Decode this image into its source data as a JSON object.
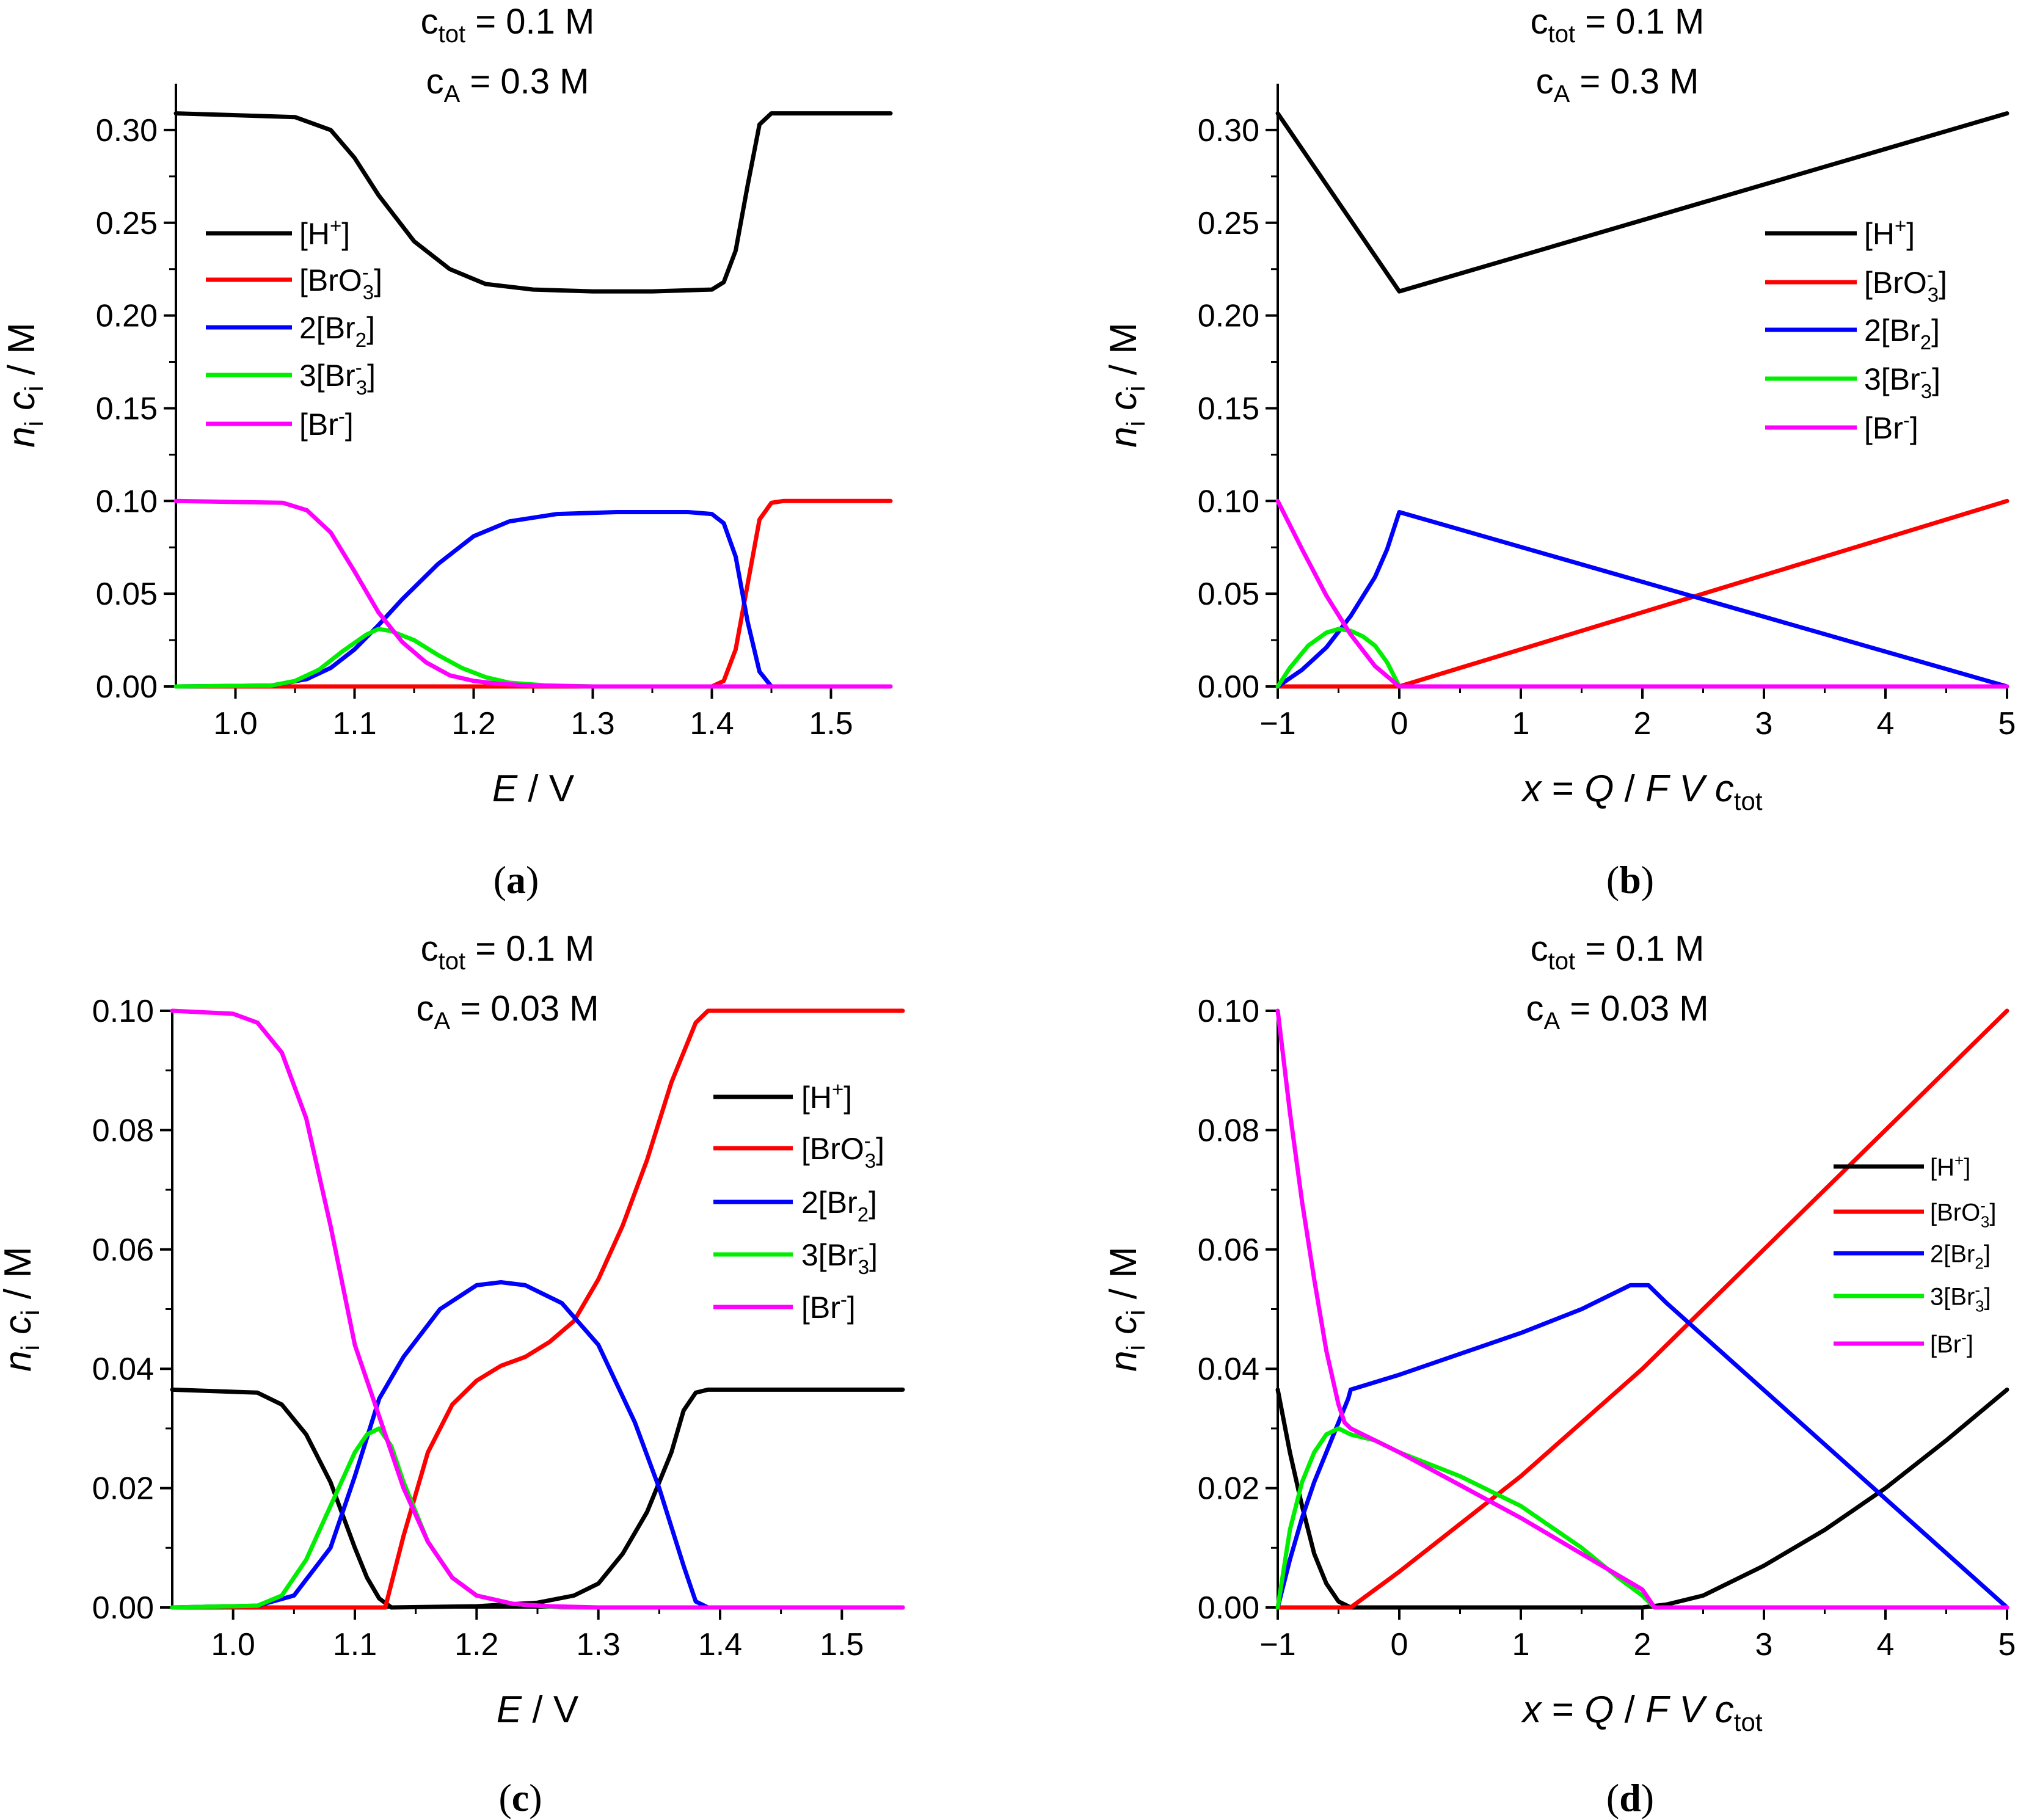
{
  "colors": {
    "h": "#000000",
    "bro3": "#ff0000",
    "br2": "#0000ff",
    "br3": "#00ee00",
    "br": "#ff00ff"
  },
  "chart_data": [
    {
      "id": "a",
      "type": "line",
      "caption": "a",
      "title_lines": [
        {
          "main": "c",
          "sub": "tot",
          "rest": " = 0.1 M"
        },
        {
          "main": "c",
          "sub": "A",
          "rest": " = 0.3 M"
        }
      ],
      "xlabel": {
        "kind": "E"
      },
      "ylabel": {
        "kind": "nici"
      },
      "xlim": [
        0.95,
        1.55
      ],
      "ylim": [
        0,
        0.325
      ],
      "xticks": [
        1.0,
        1.1,
        1.2,
        1.3,
        1.4,
        1.5
      ],
      "xtick_labels": [
        "1.0",
        "1.1",
        "1.2",
        "1.3",
        "1.4",
        "1.5"
      ],
      "yticks": [
        0,
        0.05,
        0.1,
        0.15,
        0.2,
        0.25,
        0.3
      ],
      "ytick_labels": [
        "0.00",
        "0.05",
        "0.10",
        "0.15",
        "0.20",
        "0.25",
        "0.30"
      ],
      "legend_placement": "left",
      "legend_labels": [
        "[H+]",
        "[BrO3-]",
        "2[Br2]",
        "3[Br3-]",
        "[Br-]"
      ],
      "series": [
        {
          "key": "h",
          "name": "[H+]",
          "x": [
            0.95,
            1.05,
            1.08,
            1.1,
            1.12,
            1.15,
            1.18,
            1.21,
            1.25,
            1.3,
            1.35,
            1.4,
            1.41,
            1.42,
            1.43,
            1.44,
            1.45,
            1.55
          ],
          "y": [
            0.309,
            0.307,
            0.3,
            0.285,
            0.265,
            0.24,
            0.225,
            0.217,
            0.214,
            0.213,
            0.213,
            0.214,
            0.218,
            0.235,
            0.27,
            0.303,
            0.309,
            0.309
          ]
        },
        {
          "key": "bro3",
          "name": "[BrO3-]",
          "x": [
            0.95,
            1.4,
            1.41,
            1.42,
            1.43,
            1.44,
            1.45,
            1.46,
            1.55
          ],
          "y": [
            0,
            0,
            0.003,
            0.02,
            0.055,
            0.09,
            0.099,
            0.1,
            0.1
          ]
        },
        {
          "key": "br2",
          "name": "2[Br2]",
          "x": [
            0.95,
            1.03,
            1.06,
            1.08,
            1.1,
            1.12,
            1.14,
            1.17,
            1.2,
            1.23,
            1.27,
            1.32,
            1.38,
            1.4,
            1.41,
            1.42,
            1.43,
            1.44,
            1.45,
            1.55
          ],
          "y": [
            0,
            0.0005,
            0.004,
            0.01,
            0.02,
            0.033,
            0.047,
            0.066,
            0.081,
            0.089,
            0.093,
            0.094,
            0.094,
            0.093,
            0.088,
            0.07,
            0.035,
            0.008,
            0.0,
            0
          ]
        },
        {
          "key": "br3",
          "name": "3[Br3-]",
          "x": [
            0.95,
            1.03,
            1.05,
            1.07,
            1.09,
            1.11,
            1.12,
            1.13,
            1.15,
            1.17,
            1.19,
            1.21,
            1.23,
            1.26,
            1.3,
            1.55
          ],
          "y": [
            0,
            0.0005,
            0.003,
            0.009,
            0.019,
            0.028,
            0.031,
            0.03,
            0.025,
            0.017,
            0.01,
            0.005,
            0.002,
            0.0006,
            0,
            0
          ]
        },
        {
          "key": "br",
          "name": "[Br-]",
          "x": [
            0.95,
            1.04,
            1.06,
            1.08,
            1.1,
            1.12,
            1.14,
            1.16,
            1.18,
            1.2,
            1.22,
            1.25,
            1.3,
            1.55
          ],
          "y": [
            0.1,
            0.099,
            0.095,
            0.083,
            0.062,
            0.04,
            0.024,
            0.013,
            0.006,
            0.003,
            0.0015,
            0.0004,
            0,
            0
          ]
        }
      ]
    },
    {
      "id": "b",
      "type": "line",
      "caption": "b",
      "title_lines": [
        {
          "main": "c",
          "sub": "tot",
          "rest": " = 0.1 M"
        },
        {
          "main": "c",
          "sub": "A",
          "rest": " = 0.3 M"
        }
      ],
      "xlabel": {
        "kind": "x"
      },
      "ylabel": {
        "kind": "nici"
      },
      "xlim": [
        -1,
        5
      ],
      "ylim": [
        0,
        0.325
      ],
      "xticks": [
        -1,
        0,
        1,
        2,
        3,
        4,
        5
      ],
      "xtick_labels": [
        "−1",
        "0",
        "1",
        "2",
        "3",
        "4",
        "5"
      ],
      "yticks": [
        0,
        0.05,
        0.1,
        0.15,
        0.2,
        0.25,
        0.3
      ],
      "ytick_labels": [
        "0.00",
        "0.05",
        "0.10",
        "0.15",
        "0.20",
        "0.25",
        "0.30"
      ],
      "legend_placement": "right",
      "legend_labels": [
        "[H+]",
        "[BrO3-]",
        "2[Br2]",
        "3[Br3-]",
        "[Br-]"
      ],
      "series": [
        {
          "key": "h",
          "name": "[H+]",
          "x": [
            -1,
            0,
            5
          ],
          "y": [
            0.309,
            0.213,
            0.309
          ]
        },
        {
          "key": "bro3",
          "name": "[BrO3-]",
          "x": [
            -1,
            0,
            5
          ],
          "y": [
            0,
            0,
            0.1
          ]
        },
        {
          "key": "br2",
          "name": "2[Br2]",
          "x": [
            -1,
            -0.8,
            -0.6,
            -0.4,
            -0.2,
            -0.1,
            0,
            5
          ],
          "y": [
            0,
            0.009,
            0.021,
            0.038,
            0.059,
            0.074,
            0.094,
            0
          ]
        },
        {
          "key": "br3",
          "name": "3[Br3-]",
          "x": [
            -1,
            -0.9,
            -0.75,
            -0.6,
            -0.5,
            -0.4,
            -0.3,
            -0.2,
            -0.1,
            0,
            5
          ],
          "y": [
            0,
            0.01,
            0.022,
            0.029,
            0.031,
            0.03,
            0.027,
            0.022,
            0.013,
            0,
            0
          ]
        },
        {
          "key": "br",
          "name": "[Br-]",
          "x": [
            -1,
            -0.8,
            -0.6,
            -0.4,
            -0.2,
            0,
            5
          ],
          "y": [
            0.1,
            0.074,
            0.049,
            0.028,
            0.011,
            0,
            0
          ]
        }
      ]
    },
    {
      "id": "c",
      "type": "line",
      "caption": "c",
      "title_lines": [
        {
          "main": "c",
          "sub": "tot",
          "rest": " = 0.1 M"
        },
        {
          "main": "c",
          "sub": "A",
          "rest": " = 0.03 M"
        }
      ],
      "xlabel": {
        "kind": "E"
      },
      "ylabel": {
        "kind": "nici"
      },
      "xlim": [
        0.95,
        1.55
      ],
      "ylim": [
        0,
        0.1
      ],
      "xticks": [
        1.0,
        1.1,
        1.2,
        1.3,
        1.4,
        1.5
      ],
      "xtick_labels": [
        "1.0",
        "1.1",
        "1.2",
        "1.3",
        "1.4",
        "1.5"
      ],
      "yticks": [
        0,
        0.02,
        0.04,
        0.06,
        0.08,
        0.1
      ],
      "ytick_labels": [
        "0.00",
        "0.02",
        "0.04",
        "0.06",
        "0.08",
        "0.10"
      ],
      "legend_placement": "right",
      "legend_labels": [
        "[H+]",
        "[BrO3-]",
        "2[Br2]",
        "3[Br3-]",
        "[Br-]"
      ],
      "series": [
        {
          "key": "h",
          "name": "[H+]",
          "x": [
            0.95,
            1.02,
            1.04,
            1.06,
            1.08,
            1.1,
            1.11,
            1.12,
            1.13,
            1.2,
            1.25,
            1.28,
            1.3,
            1.32,
            1.34,
            1.36,
            1.37,
            1.38,
            1.39,
            1.55
          ],
          "y": [
            0.0365,
            0.036,
            0.034,
            0.029,
            0.021,
            0.01,
            0.005,
            0.0015,
            0,
            0.0002,
            0.0008,
            0.002,
            0.004,
            0.009,
            0.016,
            0.026,
            0.033,
            0.036,
            0.0365,
            0.0365
          ]
        },
        {
          "key": "bro3",
          "name": "[BrO3-]",
          "x": [
            0.95,
            1.125,
            1.14,
            1.16,
            1.18,
            1.2,
            1.22,
            1.24,
            1.26,
            1.28,
            1.3,
            1.32,
            1.34,
            1.36,
            1.38,
            1.39,
            1.4,
            1.55
          ],
          "y": [
            0,
            0,
            0.012,
            0.026,
            0.034,
            0.038,
            0.0405,
            0.042,
            0.0445,
            0.048,
            0.055,
            0.064,
            0.075,
            0.088,
            0.098,
            0.1,
            0.1,
            0.1
          ]
        },
        {
          "key": "br2",
          "name": "2[Br2]",
          "x": [
            0.95,
            1.02,
            1.05,
            1.08,
            1.1,
            1.12,
            1.14,
            1.17,
            1.2,
            1.22,
            1.24,
            1.27,
            1.3,
            1.33,
            1.35,
            1.37,
            1.38,
            1.39,
            1.55
          ],
          "y": [
            0,
            0.0003,
            0.002,
            0.01,
            0.022,
            0.035,
            0.042,
            0.05,
            0.054,
            0.0545,
            0.054,
            0.051,
            0.044,
            0.031,
            0.02,
            0.007,
            0.001,
            0,
            0
          ]
        },
        {
          "key": "br3",
          "name": "3[Br3-]",
          "x": [
            0.95,
            1.02,
            1.04,
            1.06,
            1.08,
            1.1,
            1.11,
            1.12,
            1.13,
            1.14,
            1.16,
            1.18,
            1.2,
            1.23,
            1.27,
            1.55
          ],
          "y": [
            0,
            0.0003,
            0.002,
            0.008,
            0.017,
            0.026,
            0.029,
            0.03,
            0.027,
            0.021,
            0.011,
            0.005,
            0.002,
            0.0006,
            0,
            0
          ]
        },
        {
          "key": "br",
          "name": "[Br-]",
          "x": [
            0.95,
            1.0,
            1.02,
            1.04,
            1.06,
            1.08,
            1.1,
            1.12,
            1.14,
            1.16,
            1.18,
            1.2,
            1.23,
            1.26,
            1.3,
            1.55
          ],
          "y": [
            0.1,
            0.0995,
            0.098,
            0.093,
            0.082,
            0.064,
            0.044,
            0.032,
            0.02,
            0.011,
            0.005,
            0.002,
            0.0006,
            0.0002,
            0,
            0
          ]
        }
      ]
    },
    {
      "id": "d",
      "type": "line",
      "caption": "d",
      "title_lines": [
        {
          "main": "c",
          "sub": "tot",
          "rest": " = 0.1 M"
        },
        {
          "main": "c",
          "sub": "A",
          "rest": " = 0.03 M"
        }
      ],
      "xlabel": {
        "kind": "x"
      },
      "ylabel": {
        "kind": "nici"
      },
      "xlim": [
        -1,
        5
      ],
      "ylim": [
        0,
        0.1
      ],
      "xticks": [
        -1,
        0,
        1,
        2,
        3,
        4,
        5
      ],
      "xtick_labels": [
        "−1",
        "0",
        "1",
        "2",
        "3",
        "4",
        "5"
      ],
      "yticks": [
        0,
        0.02,
        0.04,
        0.06,
        0.08,
        0.1
      ],
      "ytick_labels": [
        "0.00",
        "0.02",
        "0.04",
        "0.06",
        "0.08",
        "0.10"
      ],
      "legend_placement": "right",
      "legend_labels": [
        "[H+]",
        "[BrO3-]",
        "2[Br2]",
        "3[Br3-]",
        "[Br-]"
      ],
      "series": [
        {
          "key": "h",
          "name": "[H+]",
          "x": [
            -1,
            -0.9,
            -0.8,
            -0.7,
            -0.6,
            -0.5,
            -0.4,
            2.0,
            2.2,
            2.5,
            3.0,
            3.5,
            4.0,
            4.5,
            5.0
          ],
          "y": [
            0.0365,
            0.026,
            0.017,
            0.009,
            0.004,
            0.001,
            0,
            0,
            0.0005,
            0.002,
            0.007,
            0.013,
            0.02,
            0.028,
            0.0365
          ]
        },
        {
          "key": "bro3",
          "name": "[BrO3-]",
          "x": [
            -1,
            -0.4,
            0,
            1,
            2,
            3,
            4,
            5
          ],
          "y": [
            0,
            0,
            0.006,
            0.022,
            0.04,
            0.06,
            0.08,
            0.1
          ]
        },
        {
          "key": "br2",
          "name": "2[Br2]",
          "x": [
            -1,
            -0.9,
            -0.8,
            -0.7,
            -0.6,
            -0.5,
            -0.42,
            -0.4,
            0,
            1,
            1.5,
            1.9,
            2.05,
            2.2,
            5
          ],
          "y": [
            0,
            0.008,
            0.015,
            0.021,
            0.026,
            0.031,
            0.035,
            0.0365,
            0.039,
            0.046,
            0.05,
            0.054,
            0.054,
            0.051,
            0
          ]
        },
        {
          "key": "br3",
          "name": "3[Br3-]",
          "x": [
            -1,
            -0.9,
            -0.8,
            -0.7,
            -0.6,
            -0.5,
            -0.4,
            -0.2,
            0,
            0.5,
            1.0,
            1.5,
            1.8,
            2.0,
            2.1,
            5
          ],
          "y": [
            0,
            0.013,
            0.021,
            0.026,
            0.029,
            0.03,
            0.029,
            0.028,
            0.026,
            0.022,
            0.017,
            0.01,
            0.005,
            0.002,
            0,
            0
          ]
        },
        {
          "key": "br",
          "name": "[Br-]",
          "x": [
            -1,
            -0.9,
            -0.8,
            -0.7,
            -0.6,
            -0.5,
            -0.45,
            -0.4,
            0,
            1,
            2,
            2.1,
            5
          ],
          "y": [
            0.1,
            0.083,
            0.068,
            0.055,
            0.043,
            0.034,
            0.031,
            0.03,
            0.026,
            0.015,
            0.003,
            0,
            0
          ]
        }
      ]
    }
  ]
}
